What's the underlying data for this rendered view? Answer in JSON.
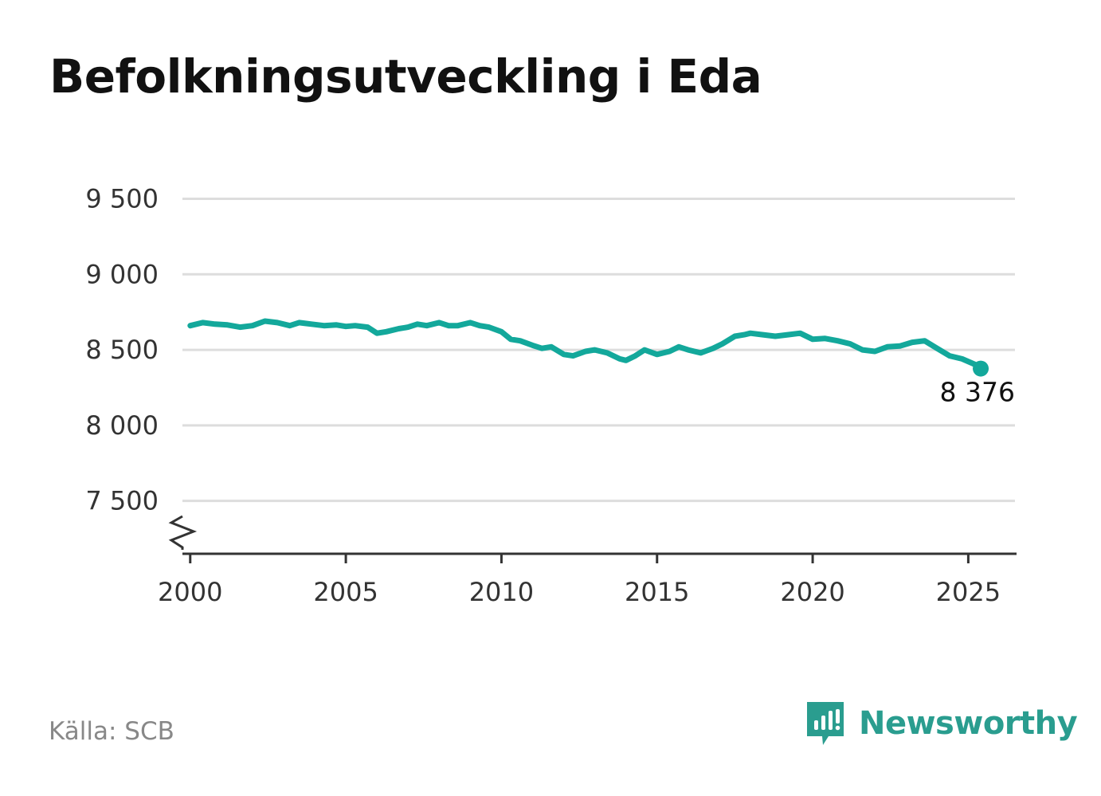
{
  "title": "Befolkningsutveckling i Eda",
  "source": "Källa: SCB",
  "brand": {
    "name": "Newsworthy",
    "icon": "newsworthy-logo-icon",
    "color": "#2a9d8f"
  },
  "chart_data": {
    "type": "line",
    "title": "Befolkningsutveckling i Eda",
    "xlabel": "",
    "ylabel": "",
    "xlim": [
      1999.75,
      2026.5
    ],
    "ylim": [
      7150,
      9550
    ],
    "y_axis_broken": true,
    "grid": "horizontal",
    "line_color": "#13a89b",
    "yticks": [
      7500,
      8000,
      8500,
      9000,
      9500
    ],
    "ytick_labels": [
      "7 500",
      "8 000",
      "8 500",
      "9 000",
      "9 500"
    ],
    "xticks": [
      2000,
      2005,
      2010,
      2015,
      2020,
      2025
    ],
    "xtick_labels": [
      "2000",
      "2005",
      "2010",
      "2015",
      "2020",
      "2025"
    ],
    "end_label": "8 376",
    "series": [
      {
        "x": [
          2000.0,
          2000.4,
          2000.8,
          2001.2,
          2001.6,
          2002.0,
          2002.4,
          2002.8,
          2003.2,
          2003.5,
          2003.9,
          2004.3,
          2004.7,
          2005.0,
          2005.3,
          2005.7,
          2006.0,
          2006.3,
          2006.7,
          2007.0,
          2007.3,
          2007.6,
          2008.0,
          2008.3,
          2008.6,
          2009.0,
          2009.3,
          2009.6,
          2010.0,
          2010.3,
          2010.6,
          2011.0,
          2011.3,
          2011.6,
          2012.0,
          2012.3,
          2012.7,
          2013.0,
          2013.4,
          2013.8,
          2014.0,
          2014.3,
          2014.6,
          2015.0,
          2015.4,
          2015.7,
          2016.0,
          2016.4,
          2016.8,
          2017.1,
          2017.5,
          2017.8,
          2018.0,
          2018.4,
          2018.8,
          2019.2,
          2019.6,
          2020.0,
          2020.4,
          2020.8,
          2021.2,
          2021.6,
          2022.0,
          2022.4,
          2022.8,
          2023.2,
          2023.6,
          2024.0,
          2024.4,
          2024.8,
          2025.2,
          2025.4
        ],
        "y": [
          8660,
          8680,
          8670,
          8665,
          8650,
          8660,
          8690,
          8680,
          8660,
          8680,
          8670,
          8660,
          8665,
          8655,
          8660,
          8650,
          8610,
          8620,
          8640,
          8650,
          8670,
          8660,
          8680,
          8660,
          8660,
          8680,
          8660,
          8650,
          8620,
          8570,
          8560,
          8530,
          8510,
          8520,
          8470,
          8460,
          8490,
          8500,
          8480,
          8440,
          8430,
          8460,
          8500,
          8470,
          8490,
          8520,
          8500,
          8480,
          8510,
          8540,
          8590,
          8600,
          8610,
          8600,
          8590,
          8600,
          8610,
          8570,
          8575,
          8560,
          8540,
          8500,
          8490,
          8520,
          8525,
          8550,
          8560,
          8510,
          8460,
          8440,
          8405,
          8376
        ]
      }
    ]
  }
}
